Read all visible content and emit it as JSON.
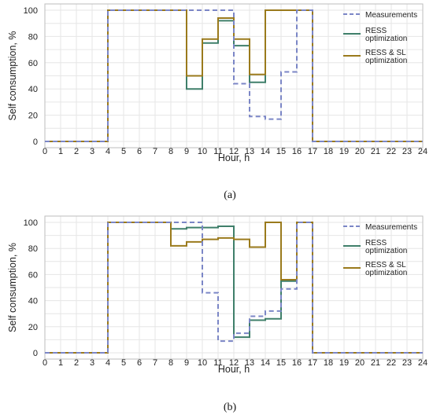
{
  "chart_data": [
    {
      "type": "line",
      "step": true,
      "caption": "(a)",
      "xlabel": "Hour, h",
      "ylabel": "Self consumption, %",
      "xlim": [
        0,
        24
      ],
      "ylim": [
        0,
        100
      ],
      "xticks": [
        0,
        1,
        2,
        3,
        4,
        5,
        6,
        7,
        8,
        9,
        10,
        11,
        12,
        13,
        14,
        15,
        16,
        17,
        18,
        19,
        20,
        21,
        22,
        23,
        24
      ],
      "yticks": [
        0,
        20,
        40,
        60,
        80,
        100
      ],
      "grid": true,
      "legend_position": "top-right",
      "series": [
        {
          "name": "Measurements",
          "color": "#7b86c6",
          "dash": "6,4",
          "values": [
            0,
            0,
            0,
            0,
            100,
            100,
            100,
            100,
            100,
            100,
            100,
            100,
            44,
            19,
            17,
            53,
            100,
            0,
            0,
            0,
            0,
            0,
            0,
            0
          ]
        },
        {
          "name": "RESS optimization",
          "color": "#3f7f6a",
          "dash": "",
          "values": [
            0,
            0,
            0,
            0,
            100,
            100,
            100,
            100,
            100,
            40,
            75,
            92,
            73,
            45,
            100,
            100,
            100,
            0,
            0,
            0,
            0,
            0,
            0,
            0
          ]
        },
        {
          "name": "RESS & SL optimization",
          "color": "#9a7a1c",
          "dash": "",
          "values": [
            0,
            0,
            0,
            0,
            100,
            100,
            100,
            100,
            100,
            50,
            78,
            94,
            78,
            51,
            100,
            100,
            100,
            0,
            0,
            0,
            0,
            0,
            0,
            0
          ]
        }
      ]
    },
    {
      "type": "line",
      "step": true,
      "caption": "(b)",
      "xlabel": "Hour, h",
      "ylabel": "Self consumption, %",
      "xlim": [
        0,
        24
      ],
      "ylim": [
        0,
        100
      ],
      "xticks": [
        0,
        1,
        2,
        3,
        4,
        5,
        6,
        7,
        8,
        9,
        10,
        11,
        12,
        13,
        14,
        15,
        16,
        17,
        18,
        19,
        20,
        21,
        22,
        23,
        24
      ],
      "yticks": [
        0,
        20,
        40,
        60,
        80,
        100
      ],
      "grid": true,
      "legend_position": "top-right",
      "series": [
        {
          "name": "Measurements",
          "color": "#7b86c6",
          "dash": "6,4",
          "values": [
            0,
            0,
            0,
            0,
            100,
            100,
            100,
            100,
            100,
            100,
            46,
            9,
            15,
            28,
            32,
            49,
            100,
            0,
            0,
            0,
            0,
            0,
            0,
            0
          ]
        },
        {
          "name": "RESS optimization",
          "color": "#3f7f6a",
          "dash": "",
          "values": [
            0,
            0,
            0,
            0,
            100,
            100,
            100,
            100,
            95,
            96,
            96,
            97,
            12,
            25,
            26,
            55,
            100,
            0,
            0,
            0,
            0,
            0,
            0,
            0
          ]
        },
        {
          "name": "RESS & SL optimization",
          "color": "#9a7a1c",
          "dash": "",
          "values": [
            0,
            0,
            0,
            0,
            100,
            100,
            100,
            100,
            82,
            85,
            87,
            88,
            87,
            81,
            100,
            56,
            100,
            0,
            0,
            0,
            0,
            0,
            0,
            0
          ]
        }
      ]
    }
  ]
}
